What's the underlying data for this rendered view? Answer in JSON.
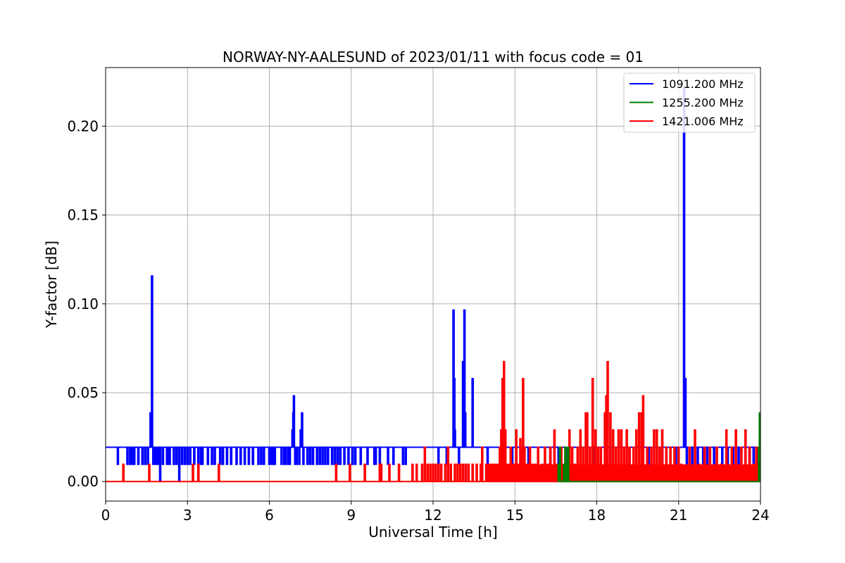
{
  "chart_data": {
    "type": "line",
    "title": "NORWAY-NY-AALESUND of 2023/01/11 with focus code = 01",
    "xlabel": "Universal Time [h]",
    "ylabel": "Y-factor [dB]",
    "xlim": [
      0,
      24
    ],
    "ylim": [
      -0.011,
      0.233
    ],
    "grid": true,
    "legend_position": "top-right",
    "x_ticks": [
      0,
      3,
      6,
      9,
      12,
      15,
      18,
      21,
      24
    ],
    "x_tick_labels": [
      "0",
      "3",
      "6",
      "9",
      "12",
      "15",
      "18",
      "21",
      "24"
    ],
    "y_ticks": [
      0.0,
      0.05,
      0.1,
      0.15,
      0.2
    ],
    "y_tick_labels": [
      "0.00",
      "0.05",
      "0.10",
      "0.15",
      "0.20"
    ],
    "series": [
      {
        "name": "1091.200 MHz",
        "color": "#0000ff",
        "baseline": 0.0193,
        "points": [
          [
            0.45,
            0.0097
          ],
          [
            0.8,
            0.0097
          ],
          [
            0.9,
            0.0097
          ],
          [
            0.95,
            0.0097
          ],
          [
            1.0,
            0.0097
          ],
          [
            1.05,
            0.0097
          ],
          [
            1.2,
            0.0097
          ],
          [
            1.35,
            0.0097
          ],
          [
            1.45,
            0.0097
          ],
          [
            1.55,
            0.0097
          ],
          [
            1.65,
            0.0386
          ],
          [
            1.7,
            0.1157
          ],
          [
            1.75,
            0.0097
          ],
          [
            1.8,
            0.0097
          ],
          [
            1.85,
            0.0097
          ],
          [
            1.9,
            0.0097
          ],
          [
            1.95,
            0.0097
          ],
          [
            2.0,
            0.0
          ],
          [
            2.1,
            0.0097
          ],
          [
            2.25,
            0.0097
          ],
          [
            2.3,
            0.0097
          ],
          [
            2.35,
            0.0097
          ],
          [
            2.5,
            0.0097
          ],
          [
            2.6,
            0.0097
          ],
          [
            2.7,
            0.0
          ],
          [
            2.8,
            0.0097
          ],
          [
            2.9,
            0.0097
          ],
          [
            3.0,
            0.0097
          ],
          [
            3.1,
            0.0097
          ],
          [
            3.25,
            0.0097
          ],
          [
            3.4,
            0.0097
          ],
          [
            3.5,
            0.0097
          ],
          [
            3.55,
            0.0097
          ],
          [
            3.75,
            0.0097
          ],
          [
            3.9,
            0.0097
          ],
          [
            4.0,
            0.0097
          ],
          [
            4.2,
            0.0097
          ],
          [
            4.3,
            0.0097
          ],
          [
            4.45,
            0.0097
          ],
          [
            4.6,
            0.0097
          ],
          [
            4.8,
            0.0097
          ],
          [
            4.95,
            0.0097
          ],
          [
            5.1,
            0.0097
          ],
          [
            5.25,
            0.0097
          ],
          [
            5.4,
            0.0097
          ],
          [
            5.6,
            0.0097
          ],
          [
            5.7,
            0.0097
          ],
          [
            5.8,
            0.0097
          ],
          [
            6.0,
            0.0097
          ],
          [
            6.05,
            0.0097
          ],
          [
            6.1,
            0.0097
          ],
          [
            6.15,
            0.0097
          ],
          [
            6.2,
            0.0097
          ],
          [
            6.45,
            0.0097
          ],
          [
            6.55,
            0.0097
          ],
          [
            6.6,
            0.0097
          ],
          [
            6.7,
            0.0097
          ],
          [
            6.75,
            0.0097
          ],
          [
            6.85,
            0.029
          ],
          [
            6.88,
            0.0386
          ],
          [
            6.9,
            0.0482
          ],
          [
            6.95,
            0.0097
          ],
          [
            7.0,
            0.0097
          ],
          [
            7.1,
            0.0097
          ],
          [
            7.15,
            0.029
          ],
          [
            7.2,
            0.0386
          ],
          [
            7.25,
            0.0097
          ],
          [
            7.4,
            0.0097
          ],
          [
            7.5,
            0.0097
          ],
          [
            7.6,
            0.0097
          ],
          [
            7.75,
            0.0097
          ],
          [
            7.85,
            0.0097
          ],
          [
            7.95,
            0.0097
          ],
          [
            8.05,
            0.0097
          ],
          [
            8.15,
            0.0097
          ],
          [
            8.3,
            0.0097
          ],
          [
            8.4,
            0.0097
          ],
          [
            8.5,
            0.0097
          ],
          [
            8.6,
            0.0097
          ],
          [
            8.75,
            0.0097
          ],
          [
            8.9,
            0.0097
          ],
          [
            9.05,
            0.0097
          ],
          [
            9.15,
            0.0097
          ],
          [
            9.35,
            0.0097
          ],
          [
            9.6,
            0.0097
          ],
          [
            9.85,
            0.0097
          ],
          [
            9.9,
            0.0097
          ],
          [
            10.05,
            0.0097
          ],
          [
            10.35,
            0.0097
          ],
          [
            10.55,
            0.0097
          ],
          [
            10.9,
            0.0097
          ],
          [
            11.0,
            0.0097
          ],
          [
            12.2,
            0.0097
          ],
          [
            12.5,
            0.0097
          ],
          [
            12.75,
            0.0965
          ],
          [
            12.78,
            0.0579
          ],
          [
            12.8,
            0.029
          ],
          [
            12.95,
            0.0097
          ],
          [
            13.1,
            0.0675
          ],
          [
            13.15,
            0.0965
          ],
          [
            13.18,
            0.0386
          ],
          [
            13.45,
            0.0579
          ],
          [
            14.0,
            0.0097
          ],
          [
            14.9,
            0.0097
          ],
          [
            15.5,
            0.0097
          ],
          [
            16.3,
            0.0097
          ],
          [
            16.6,
            0.0097
          ],
          [
            16.9,
            0.0097
          ],
          [
            17.4,
            0.0097
          ],
          [
            17.9,
            0.0097
          ],
          [
            18.5,
            0.0097
          ],
          [
            19.2,
            0.0097
          ],
          [
            19.9,
            0.0097
          ],
          [
            20.4,
            0.0097
          ],
          [
            20.9,
            0.0097
          ],
          [
            21.2,
            0.2219
          ],
          [
            21.25,
            0.0579
          ],
          [
            21.3,
            0.0097
          ],
          [
            21.5,
            0.0097
          ],
          [
            21.7,
            0.0097
          ],
          [
            21.9,
            0.0097
          ],
          [
            22.05,
            0.0097
          ],
          [
            22.3,
            0.0097
          ],
          [
            22.6,
            0.0097
          ],
          [
            22.8,
            0.0097
          ],
          [
            23.0,
            0.0097
          ],
          [
            23.2,
            0.0097
          ],
          [
            23.45,
            0.0097
          ],
          [
            23.6,
            0.0097
          ],
          [
            23.75,
            0.0097
          ],
          [
            23.9,
            0.0097
          ]
        ]
      },
      {
        "name": "1255.200 MHz",
        "color": "#008000",
        "baseline": 0.0,
        "points": [
          [
            16.6,
            0.0097
          ],
          [
            16.65,
            0.0193
          ],
          [
            16.8,
            0.0097
          ],
          [
            16.85,
            0.0193
          ],
          [
            16.9,
            0.0097
          ],
          [
            16.95,
            0.0193
          ],
          [
            23.95,
            0.0193
          ],
          [
            23.98,
            0.0386
          ],
          [
            24.0,
            0.0386
          ]
        ]
      },
      {
        "name": "1421.006 MHz",
        "color": "#ff0000",
        "baseline": 0.0,
        "points": [
          [
            0.65,
            0.0097
          ],
          [
            1.6,
            0.0097
          ],
          [
            3.2,
            0.0097
          ],
          [
            3.4,
            0.0097
          ],
          [
            4.15,
            0.0097
          ],
          [
            8.45,
            0.0097
          ],
          [
            8.95,
            0.0097
          ],
          [
            9.5,
            0.0097
          ],
          [
            10.05,
            0.0097
          ],
          [
            10.1,
            0.0097
          ],
          [
            10.4,
            0.0097
          ],
          [
            10.75,
            0.0097
          ],
          [
            11.25,
            0.0097
          ],
          [
            11.4,
            0.0097
          ],
          [
            11.6,
            0.0097
          ],
          [
            11.7,
            0.0193
          ],
          [
            11.8,
            0.0097
          ],
          [
            11.9,
            0.0097
          ],
          [
            12.0,
            0.0097
          ],
          [
            12.1,
            0.0097
          ],
          [
            12.2,
            0.0097
          ],
          [
            12.3,
            0.0097
          ],
          [
            12.45,
            0.0097
          ],
          [
            12.55,
            0.0193
          ],
          [
            12.65,
            0.0097
          ],
          [
            12.8,
            0.0097
          ],
          [
            12.9,
            0.0097
          ],
          [
            13.0,
            0.0097
          ],
          [
            13.1,
            0.0097
          ],
          [
            13.2,
            0.0097
          ],
          [
            13.3,
            0.0097
          ],
          [
            13.45,
            0.0097
          ],
          [
            13.6,
            0.0097
          ],
          [
            13.75,
            0.0097
          ],
          [
            13.8,
            0.0193
          ],
          [
            13.95,
            0.0097
          ],
          [
            14.05,
            0.0097
          ],
          [
            14.15,
            0.0097
          ],
          [
            14.25,
            0.0097
          ],
          [
            14.35,
            0.0097
          ],
          [
            14.45,
            0.0193
          ],
          [
            14.5,
            0.029
          ],
          [
            14.55,
            0.0579
          ],
          [
            14.6,
            0.0675
          ],
          [
            14.65,
            0.029
          ],
          [
            14.75,
            0.0097
          ],
          [
            14.85,
            0.0193
          ],
          [
            14.95,
            0.0097
          ],
          [
            15.05,
            0.029
          ],
          [
            15.15,
            0.0097
          ],
          [
            15.2,
            0.0241
          ],
          [
            15.25,
            0.0193
          ],
          [
            15.3,
            0.0579
          ],
          [
            15.35,
            0.0193
          ],
          [
            15.45,
            0.0097
          ],
          [
            15.55,
            0.0193
          ],
          [
            15.65,
            0.0097
          ],
          [
            15.75,
            0.0097
          ],
          [
            15.85,
            0.0193
          ],
          [
            16.0,
            0.0097
          ],
          [
            16.1,
            0.0193
          ],
          [
            16.2,
            0.0097
          ],
          [
            16.3,
            0.0193
          ],
          [
            16.45,
            0.029
          ],
          [
            16.55,
            0.0097
          ],
          [
            16.7,
            0.0193
          ],
          [
            16.85,
            0.0097
          ],
          [
            17.0,
            0.029
          ],
          [
            17.1,
            0.0193
          ],
          [
            17.2,
            0.0097
          ],
          [
            17.3,
            0.0193
          ],
          [
            17.4,
            0.029
          ],
          [
            17.5,
            0.0193
          ],
          [
            17.6,
            0.0386
          ],
          [
            17.65,
            0.0386
          ],
          [
            17.75,
            0.0193
          ],
          [
            17.85,
            0.0579
          ],
          [
            17.95,
            0.029
          ],
          [
            18.05,
            0.0193
          ],
          [
            18.15,
            0.0193
          ],
          [
            18.3,
            0.0386
          ],
          [
            18.35,
            0.0482
          ],
          [
            18.4,
            0.0675
          ],
          [
            18.5,
            0.0386
          ],
          [
            18.6,
            0.029
          ],
          [
            18.7,
            0.0193
          ],
          [
            18.8,
            0.029
          ],
          [
            18.9,
            0.029
          ],
          [
            19.0,
            0.0193
          ],
          [
            19.1,
            0.029
          ],
          [
            19.2,
            0.0193
          ],
          [
            19.35,
            0.0193
          ],
          [
            19.45,
            0.029
          ],
          [
            19.55,
            0.0386
          ],
          [
            19.65,
            0.0386
          ],
          [
            19.7,
            0.0482
          ],
          [
            19.85,
            0.0193
          ],
          [
            20.0,
            0.0193
          ],
          [
            20.1,
            0.029
          ],
          [
            20.2,
            0.029
          ],
          [
            20.3,
            0.0193
          ],
          [
            20.4,
            0.029
          ],
          [
            20.55,
            0.0193
          ],
          [
            20.7,
            0.0193
          ],
          [
            20.85,
            0.0193
          ],
          [
            21.0,
            0.0193
          ],
          [
            21.1,
            0.0097
          ],
          [
            21.4,
            0.0193
          ],
          [
            21.6,
            0.029
          ],
          [
            21.75,
            0.0097
          ],
          [
            21.95,
            0.0193
          ],
          [
            22.15,
            0.0193
          ],
          [
            22.4,
            0.0193
          ],
          [
            22.55,
            0.0097
          ],
          [
            22.75,
            0.029
          ],
          [
            22.95,
            0.0193
          ],
          [
            23.1,
            0.029
          ],
          [
            23.3,
            0.0193
          ],
          [
            23.45,
            0.029
          ],
          [
            23.6,
            0.0193
          ],
          [
            23.75,
            0.0097
          ],
          [
            23.85,
            0.0193
          ]
        ],
        "dense_region": {
          "x_range": [
            14.0,
            24.0
          ],
          "level": 0.0097
        }
      }
    ]
  }
}
